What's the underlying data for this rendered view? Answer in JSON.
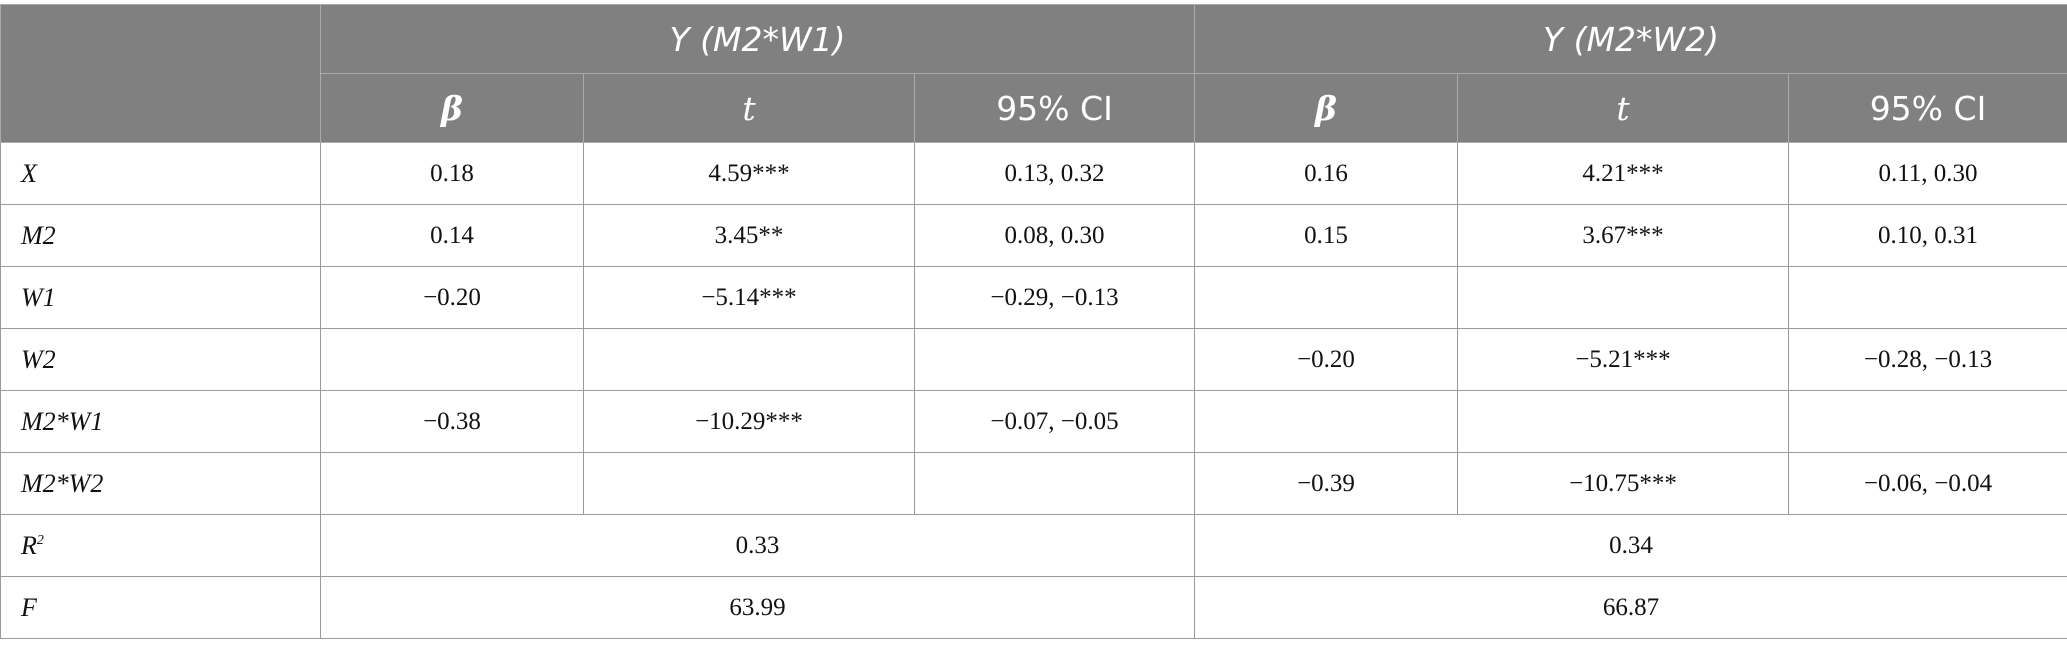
{
  "table": {
    "groups": [
      "Y (M2*W1)",
      "Y (M2*W2)"
    ],
    "columns": [
      "β",
      "t",
      "95% CI",
      "β",
      "t",
      "95% CI"
    ],
    "rows": [
      {
        "label": "X",
        "cells": [
          "0.18",
          "4.59***",
          "0.13, 0.32",
          "0.16",
          "4.21***",
          "0.11, 0.30"
        ]
      },
      {
        "label": "M2",
        "cells": [
          "0.14",
          "3.45**",
          "0.08, 0.30",
          "0.15",
          "3.67***",
          "0.10, 0.31"
        ]
      },
      {
        "label": "W1",
        "cells": [
          "−0.20",
          "−5.14***",
          "−0.29, −0.13",
          "",
          "",
          ""
        ]
      },
      {
        "label": "W2",
        "cells": [
          "",
          "",
          "",
          "−0.20",
          "−5.21***",
          "−0.28, −0.13"
        ]
      },
      {
        "label": "M2*W1",
        "cells": [
          "−0.38",
          "−10.29***",
          "−0.07, −0.05",
          "",
          "",
          ""
        ]
      },
      {
        "label": "M2*W2",
        "cells": [
          "",
          "",
          "",
          "−0.39",
          "−10.75***",
          "−0.06, −0.04"
        ]
      }
    ],
    "summary": [
      {
        "label_main": "R",
        "label_sup": "2",
        "values": [
          "0.33",
          "0.34"
        ]
      },
      {
        "label_main": "F",
        "label_sup": "",
        "values": [
          "63.99",
          "66.87"
        ]
      }
    ]
  }
}
